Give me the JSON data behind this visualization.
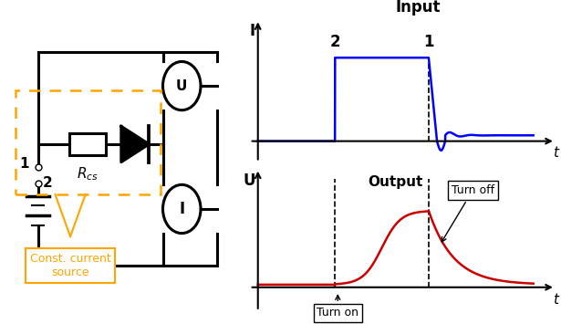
{
  "bg_color": "#ffffff",
  "input_label": "Input",
  "output_label": "Output",
  "turn_on_label": "Turn on",
  "turn_off_label": "Turn off",
  "orange_color": "#FFA500",
  "blue_color": "#0000FF",
  "red_color": "#CC0000",
  "black_color": "#000000",
  "t1": 0.62,
  "t2": 0.28,
  "I_high": 0.72,
  "I_low_after": 0.05,
  "U_high": 0.58,
  "U_zero": 0.02
}
